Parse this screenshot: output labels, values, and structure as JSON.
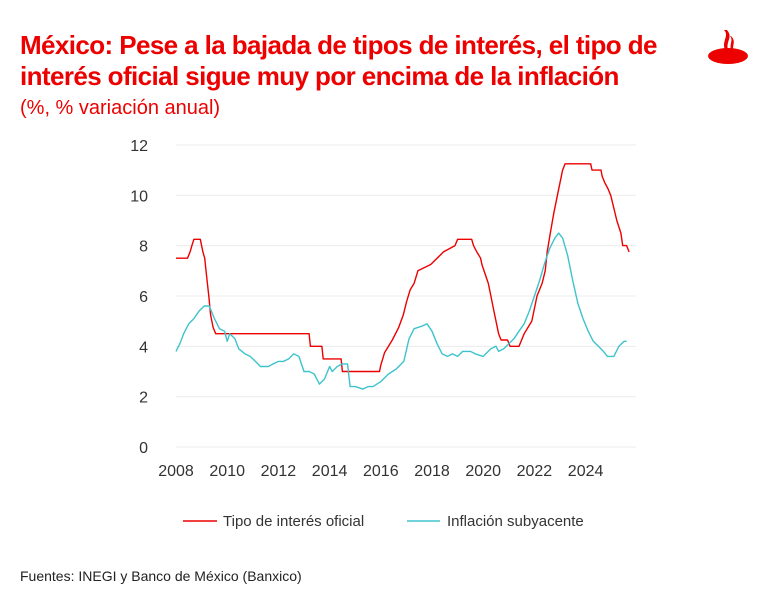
{
  "header": {
    "title": "México: Pese a la bajada de tipos de interés, el tipo de interés oficial sigue muy por encima de la inflación",
    "subtitle": "(%, % variación anual)",
    "logo": "Santander"
  },
  "footer": {
    "source": "Fuentes: INEGI y Banco de México (Banxico)"
  },
  "colors": {
    "red": "#ec0000",
    "teal": "#3ec3cc"
  },
  "chart_data": {
    "type": "line",
    "title": "México: Pese a la bajada de tipos de interés, el tipo de interés oficial sigue muy por encima de la inflación",
    "xlabel": "",
    "ylabel": "(%, % variación anual)",
    "xlim": [
      2008,
      2025.7
    ],
    "ylim": [
      0,
      12
    ],
    "xticks": [
      "2008",
      "2010",
      "2012",
      "2014",
      "2016",
      "2018",
      "2020",
      "2022",
      "2024"
    ],
    "yticks": [
      "0",
      "2",
      "4",
      "6",
      "8",
      "10",
      "12"
    ],
    "grid": true,
    "legend": "bottom",
    "series": [
      {
        "name": "Tipo de interés oficial",
        "color": "#ec0000",
        "step": true,
        "points": [
          [
            2008.0,
            7.5
          ],
          [
            2008.45,
            7.5
          ],
          [
            2008.55,
            7.75
          ],
          [
            2008.62,
            8.0
          ],
          [
            2008.7,
            8.25
          ],
          [
            2008.95,
            8.25
          ],
          [
            2009.05,
            7.75
          ],
          [
            2009.12,
            7.5
          ],
          [
            2009.2,
            6.75
          ],
          [
            2009.28,
            6.0
          ],
          [
            2009.35,
            5.25
          ],
          [
            2009.45,
            4.75
          ],
          [
            2009.55,
            4.5
          ],
          [
            2013.2,
            4.5
          ],
          [
            2013.25,
            4.0
          ],
          [
            2013.7,
            4.0
          ],
          [
            2013.75,
            3.5
          ],
          [
            2014.45,
            3.5
          ],
          [
            2014.5,
            3.0
          ],
          [
            2015.95,
            3.0
          ],
          [
            2016.0,
            3.25
          ],
          [
            2016.15,
            3.75
          ],
          [
            2016.45,
            4.25
          ],
          [
            2016.7,
            4.75
          ],
          [
            2016.88,
            5.25
          ],
          [
            2017.0,
            5.75
          ],
          [
            2017.15,
            6.25
          ],
          [
            2017.3,
            6.5
          ],
          [
            2017.45,
            7.0
          ],
          [
            2017.95,
            7.25
          ],
          [
            2018.2,
            7.5
          ],
          [
            2018.45,
            7.75
          ],
          [
            2018.9,
            8.0
          ],
          [
            2019.0,
            8.25
          ],
          [
            2019.55,
            8.25
          ],
          [
            2019.62,
            8.0
          ],
          [
            2019.75,
            7.75
          ],
          [
            2019.9,
            7.5
          ],
          [
            2019.95,
            7.25
          ],
          [
            2020.2,
            6.5
          ],
          [
            2020.3,
            6.0
          ],
          [
            2020.4,
            5.5
          ],
          [
            2020.5,
            5.0
          ],
          [
            2020.6,
            4.5
          ],
          [
            2020.7,
            4.25
          ],
          [
            2020.95,
            4.25
          ],
          [
            2021.05,
            4.0
          ],
          [
            2021.4,
            4.0
          ],
          [
            2021.5,
            4.25
          ],
          [
            2021.6,
            4.5
          ],
          [
            2021.75,
            4.75
          ],
          [
            2021.9,
            5.0
          ],
          [
            2022.0,
            5.5
          ],
          [
            2022.1,
            6.0
          ],
          [
            2022.3,
            6.5
          ],
          [
            2022.42,
            7.0
          ],
          [
            2022.5,
            7.75
          ],
          [
            2022.62,
            8.5
          ],
          [
            2022.75,
            9.25
          ],
          [
            2022.9,
            10.0
          ],
          [
            2023.0,
            10.5
          ],
          [
            2023.1,
            11.0
          ],
          [
            2023.2,
            11.25
          ],
          [
            2024.2,
            11.25
          ],
          [
            2024.25,
            11.0
          ],
          [
            2024.6,
            11.0
          ],
          [
            2024.65,
            10.75
          ],
          [
            2024.75,
            10.5
          ],
          [
            2024.88,
            10.25
          ],
          [
            2024.98,
            10.0
          ],
          [
            2025.1,
            9.5
          ],
          [
            2025.22,
            9.0
          ],
          [
            2025.38,
            8.5
          ],
          [
            2025.45,
            8.0
          ],
          [
            2025.6,
            8.0
          ],
          [
            2025.7,
            7.75
          ]
        ]
      },
      {
        "name": "Inflación subyacente",
        "color": "#3ec3cc",
        "step": false,
        "points": [
          [
            2008.0,
            3.8
          ],
          [
            2008.15,
            4.1
          ],
          [
            2008.3,
            4.5
          ],
          [
            2008.5,
            4.9
          ],
          [
            2008.7,
            5.1
          ],
          [
            2008.9,
            5.4
          ],
          [
            2009.1,
            5.6
          ],
          [
            2009.3,
            5.6
          ],
          [
            2009.5,
            5.1
          ],
          [
            2009.7,
            4.7
          ],
          [
            2009.9,
            4.6
          ],
          [
            2010.0,
            4.2
          ],
          [
            2010.1,
            4.5
          ],
          [
            2010.3,
            4.3
          ],
          [
            2010.45,
            3.9
          ],
          [
            2010.7,
            3.7
          ],
          [
            2010.9,
            3.6
          ],
          [
            2011.1,
            3.4
          ],
          [
            2011.3,
            3.2
          ],
          [
            2011.6,
            3.2
          ],
          [
            2011.8,
            3.3
          ],
          [
            2012.0,
            3.4
          ],
          [
            2012.2,
            3.4
          ],
          [
            2012.4,
            3.5
          ],
          [
            2012.6,
            3.7
          ],
          [
            2012.8,
            3.6
          ],
          [
            2013.0,
            3.0
          ],
          [
            2013.2,
            3.0
          ],
          [
            2013.4,
            2.9
          ],
          [
            2013.6,
            2.5
          ],
          [
            2013.8,
            2.7
          ],
          [
            2014.0,
            3.2
          ],
          [
            2014.1,
            3.0
          ],
          [
            2014.3,
            3.2
          ],
          [
            2014.5,
            3.3
          ],
          [
            2014.7,
            3.3
          ],
          [
            2014.8,
            2.4
          ],
          [
            2015.0,
            2.4
          ],
          [
            2015.3,
            2.3
          ],
          [
            2015.5,
            2.4
          ],
          [
            2015.7,
            2.4
          ],
          [
            2016.0,
            2.6
          ],
          [
            2016.3,
            2.9
          ],
          [
            2016.6,
            3.1
          ],
          [
            2016.9,
            3.4
          ],
          [
            2017.1,
            4.3
          ],
          [
            2017.3,
            4.7
          ],
          [
            2017.6,
            4.8
          ],
          [
            2017.8,
            4.9
          ],
          [
            2018.0,
            4.6
          ],
          [
            2018.2,
            4.1
          ],
          [
            2018.4,
            3.7
          ],
          [
            2018.6,
            3.6
          ],
          [
            2018.8,
            3.7
          ],
          [
            2019.0,
            3.6
          ],
          [
            2019.2,
            3.8
          ],
          [
            2019.5,
            3.8
          ],
          [
            2019.7,
            3.7
          ],
          [
            2020.0,
            3.6
          ],
          [
            2020.3,
            3.9
          ],
          [
            2020.5,
            4.0
          ],
          [
            2020.6,
            3.8
          ],
          [
            2020.8,
            3.9
          ],
          [
            2021.0,
            4.1
          ],
          [
            2021.2,
            4.3
          ],
          [
            2021.4,
            4.6
          ],
          [
            2021.6,
            4.9
          ],
          [
            2021.8,
            5.4
          ],
          [
            2022.0,
            6.0
          ],
          [
            2022.2,
            6.6
          ],
          [
            2022.4,
            7.3
          ],
          [
            2022.6,
            7.9
          ],
          [
            2022.8,
            8.3
          ],
          [
            2022.95,
            8.5
          ],
          [
            2023.1,
            8.3
          ],
          [
            2023.3,
            7.6
          ],
          [
            2023.5,
            6.6
          ],
          [
            2023.7,
            5.7
          ],
          [
            2023.9,
            5.1
          ],
          [
            2024.1,
            4.6
          ],
          [
            2024.3,
            4.2
          ],
          [
            2024.5,
            4.0
          ],
          [
            2024.7,
            3.8
          ],
          [
            2024.85,
            3.6
          ],
          [
            2025.1,
            3.6
          ],
          [
            2025.3,
            4.0
          ],
          [
            2025.5,
            4.2
          ],
          [
            2025.6,
            4.2
          ]
        ]
      }
    ]
  }
}
